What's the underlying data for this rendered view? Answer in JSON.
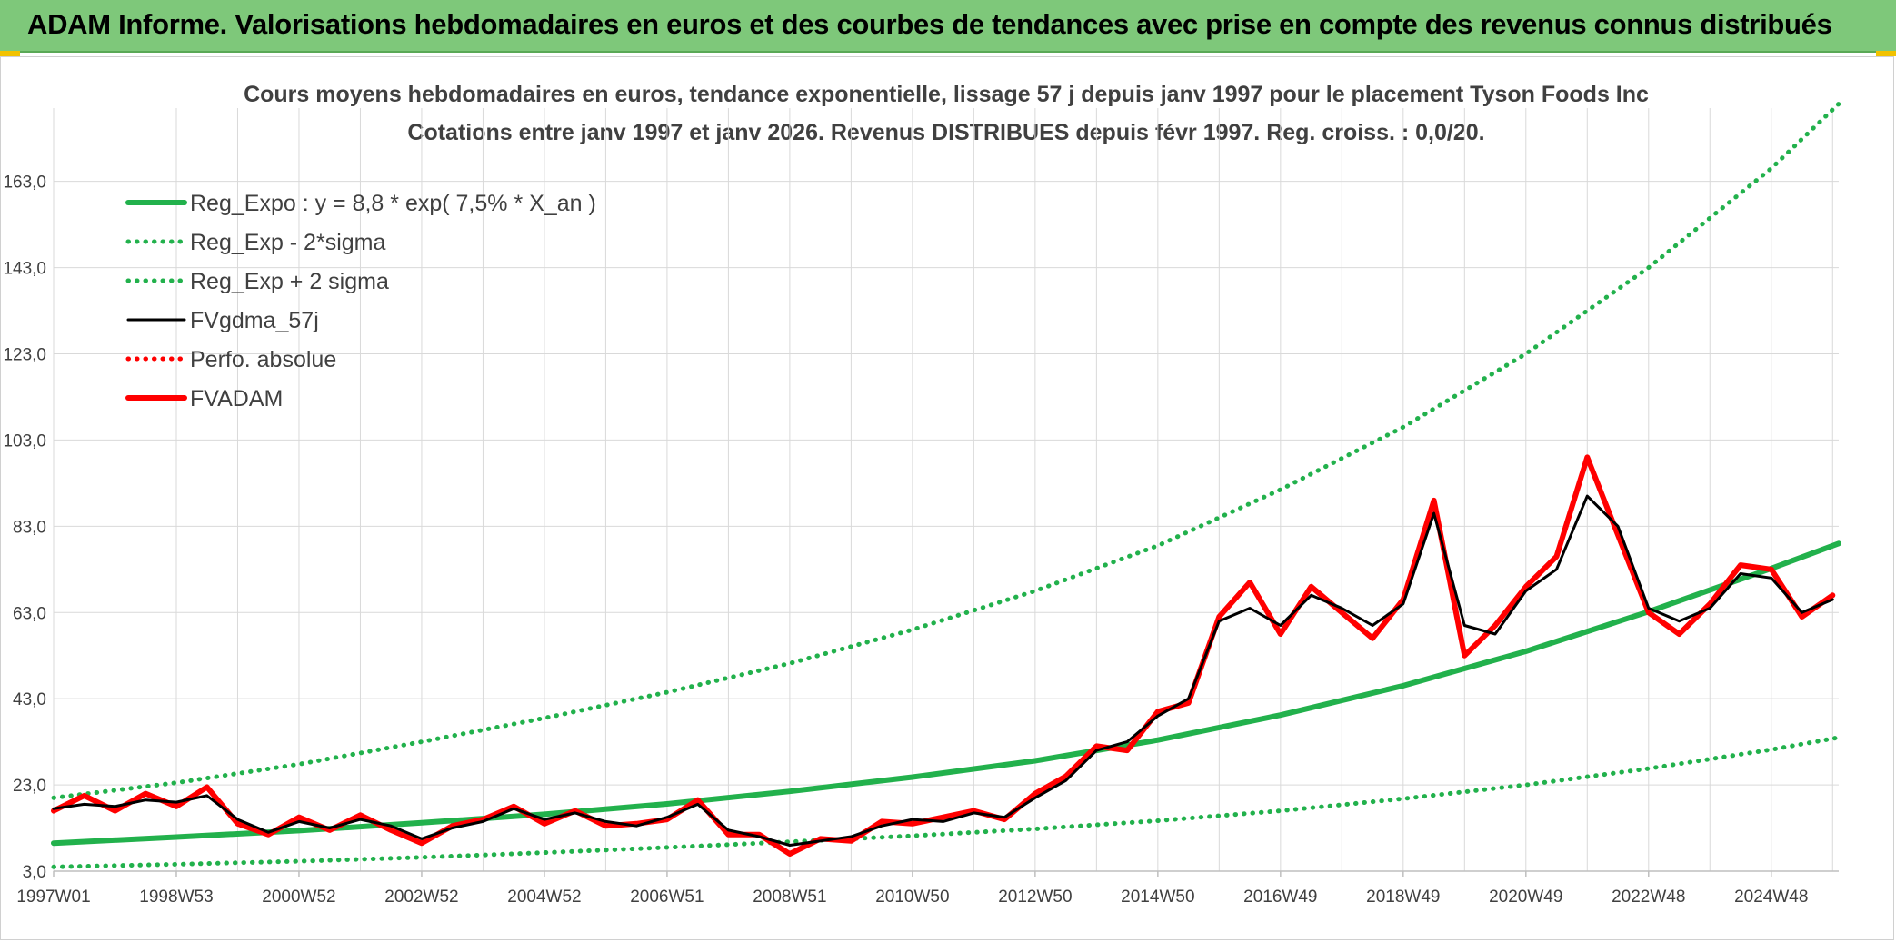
{
  "banner": {
    "title": "ADAM Informe. Valorisations hebdomadaires en euros et des courbes de tendances avec prise en compte des revenus connus distribués"
  },
  "colors": {
    "banner_bg": "#7ec87a",
    "trend": "#22b14c",
    "black": "#000000",
    "red": "#ff0000",
    "grid": "#d9d9d9",
    "text": "#404040"
  },
  "chart_data": {
    "type": "line",
    "title": "Cours moyens hebdomadaires en euros, tendance exponentielle, lissage 57 j depuis janv 1997 pour le placement Tyson Foods Inc",
    "subtitle": "Cotations entre janv 1997 et janv 2026. Revenus DISTRIBUES depuis févr 1997. Reg. croiss. : 0,0/20.",
    "xlabel": "",
    "ylabel": "",
    "xlim": [
      1997.0,
      2026.1
    ],
    "ylim": [
      3.0,
      180.0
    ],
    "y_ticks": [
      "3,0",
      "23,0",
      "43,0",
      "63,0",
      "83,0",
      "103,0",
      "123,0",
      "143,0",
      "163,0"
    ],
    "y_tick_values": [
      3,
      23,
      43,
      63,
      83,
      103,
      123,
      143,
      163
    ],
    "x_tick_labels": [
      "1997W01",
      "1998W53",
      "2000W52",
      "2002W52",
      "2004W52",
      "2006W51",
      "2008W51",
      "2010W50",
      "2012W50",
      "2014W50",
      "2016W49",
      "2018W49",
      "2020W49",
      "2022W48",
      "2024W48"
    ],
    "x_tick_values": [
      1997.0,
      1999.0,
      2001.0,
      2003.0,
      2005.0,
      2007.0,
      2009.0,
      2011.0,
      2013.0,
      2015.0,
      2017.0,
      2019.0,
      2021.0,
      2023.0,
      2025.0
    ],
    "grid": true,
    "legend_position": "top-left",
    "legend": [
      "Reg_Expo : y = 8,8 * exp( 7,5% *  X_an )",
      "Reg_Exp - 2*sigma",
      "Reg_Exp + 2 sigma",
      "FVgdma_57j",
      "Perfo. absolue",
      "FVADAM"
    ],
    "series": [
      {
        "name": "Reg_Expo : y = 8,8 * exp( 7,5% *  X_an )",
        "style": "solid-thick",
        "color": "#22b14c",
        "x": [
          1997,
          1999,
          2001,
          2003,
          2005,
          2007,
          2009,
          2011,
          2013,
          2015,
          2017,
          2019,
          2021,
          2023,
          2025,
          2026.1
        ],
        "values": [
          9.5,
          10.9,
          12.4,
          14.2,
          16.2,
          18.6,
          21.5,
          24.8,
          28.6,
          33.4,
          39.2,
          46.0,
          54.0,
          63.2,
          73.2,
          79.0
        ]
      },
      {
        "name": "Reg_Exp - 2*sigma",
        "style": "dotted",
        "color": "#22b14c",
        "x": [
          1997,
          1999,
          2001,
          2003,
          2005,
          2007,
          2009,
          2011,
          2013,
          2015,
          2017,
          2019,
          2021,
          2023,
          2025,
          2026.1
        ],
        "values": [
          4.0,
          4.6,
          5.3,
          6.2,
          7.3,
          8.5,
          9.8,
          11.2,
          12.8,
          14.7,
          17.0,
          19.8,
          23.0,
          26.8,
          31.2,
          34.0
        ]
      },
      {
        "name": "Reg_Exp + 2 sigma",
        "style": "dotted",
        "color": "#22b14c",
        "x": [
          1997,
          1999,
          2001,
          2003,
          2005,
          2007,
          2009,
          2011,
          2013,
          2015,
          2017,
          2019,
          2021,
          2023,
          2025,
          2026.1
        ],
        "values": [
          20.0,
          23.5,
          27.8,
          33.0,
          38.5,
          44.5,
          51.2,
          59.0,
          68.0,
          78.5,
          91.5,
          106.0,
          123.0,
          143.0,
          166.0,
          181.0
        ]
      },
      {
        "name": "FVgdma_57j",
        "style": "solid",
        "color": "#000000",
        "x": [
          1997.0,
          1997.5,
          1998.0,
          1998.5,
          1999.0,
          1999.5,
          2000.0,
          2000.5,
          2001.0,
          2001.5,
          2002.0,
          2002.5,
          2003.0,
          2003.5,
          2004.0,
          2004.5,
          2005.0,
          2005.5,
          2006.0,
          2006.5,
          2007.0,
          2007.5,
          2008.0,
          2008.5,
          2009.0,
          2009.5,
          2010.0,
          2010.5,
          2011.0,
          2011.5,
          2012.0,
          2012.5,
          2013.0,
          2013.5,
          2014.0,
          2014.5,
          2015.0,
          2015.5,
          2016.0,
          2016.5,
          2017.0,
          2017.5,
          2018.0,
          2018.5,
          2019.0,
          2019.5,
          2020.0,
          2020.5,
          2021.0,
          2021.5,
          2022.0,
          2022.5,
          2023.0,
          2023.5,
          2024.0,
          2024.5,
          2025.0,
          2025.5,
          2026.0
        ],
        "values": [
          17.5,
          18.5,
          18.0,
          19.5,
          19.0,
          20.5,
          15.0,
          12.0,
          14.5,
          13.0,
          15.0,
          13.5,
          10.5,
          13.0,
          14.5,
          17.5,
          15.0,
          16.5,
          14.5,
          13.5,
          15.5,
          18.5,
          12.5,
          11.0,
          9.0,
          10.0,
          11.0,
          13.5,
          15.0,
          14.5,
          16.5,
          15.5,
          20.0,
          24.0,
          31.0,
          33.0,
          39.0,
          43.0,
          61.0,
          64.0,
          60.0,
          67.0,
          64.0,
          60.0,
          65.0,
          86.0,
          60.0,
          58.0,
          68.0,
          73.0,
          90.0,
          83.0,
          64.0,
          61.0,
          64.0,
          72.0,
          71.0,
          63.0,
          66.0
        ]
      },
      {
        "name": "Perfo. absolue",
        "style": "dotted",
        "color": "#ff0000",
        "values": []
      },
      {
        "name": "FVADAM",
        "style": "solid-thick",
        "color": "#ff0000",
        "x": [
          1997.0,
          1997.5,
          1998.0,
          1998.5,
          1999.0,
          1999.5,
          2000.0,
          2000.5,
          2001.0,
          2001.5,
          2002.0,
          2002.5,
          2003.0,
          2003.5,
          2004.0,
          2004.5,
          2005.0,
          2005.5,
          2006.0,
          2006.5,
          2007.0,
          2007.5,
          2008.0,
          2008.5,
          2009.0,
          2009.5,
          2010.0,
          2010.5,
          2011.0,
          2011.5,
          2012.0,
          2012.5,
          2013.0,
          2013.5,
          2014.0,
          2014.5,
          2015.0,
          2015.5,
          2016.0,
          2016.5,
          2017.0,
          2017.5,
          2018.0,
          2018.5,
          2019.0,
          2019.5,
          2020.0,
          2020.5,
          2021.0,
          2021.5,
          2022.0,
          2022.5,
          2023.0,
          2023.5,
          2024.0,
          2024.5,
          2025.0,
          2025.5,
          2026.0
        ],
        "values": [
          17.0,
          20.5,
          17.0,
          21.0,
          18.0,
          22.5,
          14.0,
          11.5,
          15.5,
          12.5,
          16.0,
          12.5,
          9.5,
          13.5,
          15.0,
          18.0,
          14.0,
          17.0,
          13.5,
          14.0,
          15.0,
          19.5,
          11.5,
          11.5,
          7.0,
          10.5,
          10.0,
          14.5,
          14.0,
          15.5,
          17.0,
          15.0,
          21.0,
          25.0,
          32.0,
          31.0,
          40.0,
          42.0,
          62.0,
          70.0,
          58.0,
          69.0,
          63.0,
          57.0,
          66.0,
          89.0,
          53.0,
          60.0,
          69.0,
          76.0,
          99.0,
          81.0,
          63.0,
          58.0,
          65.0,
          74.0,
          73.0,
          62.0,
          67.0
        ]
      }
    ]
  }
}
